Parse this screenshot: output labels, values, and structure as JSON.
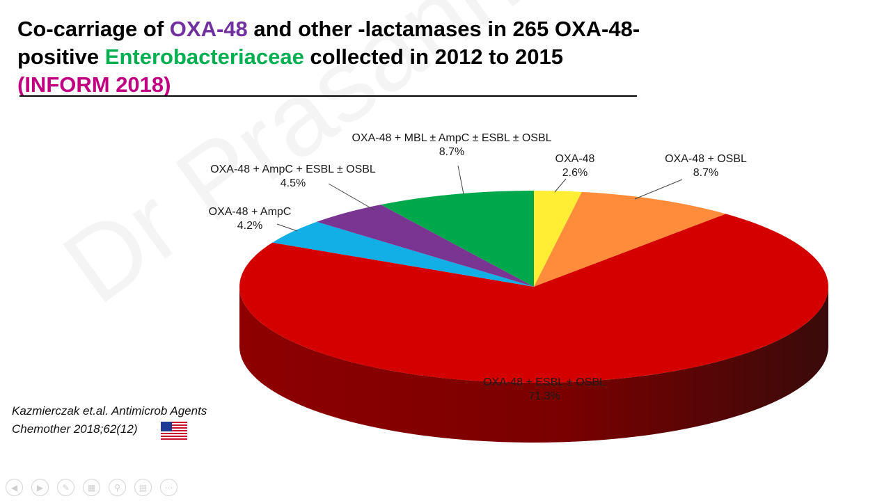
{
  "slide": {
    "title_parts": {
      "p1": "Co-carriage of ",
      "p2": "OXA-48",
      "p3": " and other -lactamases in 265 OXA-48-positive ",
      "p4": "Enterobacteriaceae",
      "p5": " collected in 2012 to 2015 ",
      "p6": "(INFORM 2018)"
    },
    "citation_line1": "Kazmierczak et.al. Antimicrob Agents",
    "citation_line2": "Chemother 2018;62(12)",
    "watermark": "Dr Prasanna Rangappa"
  },
  "chart_data": {
    "type": "pie",
    "title": "",
    "slices": [
      {
        "label": "OXA-48",
        "percent_label": "2.6%",
        "value": 2.6,
        "color": "#ffee33"
      },
      {
        "label": "OXA-48 + OSBL",
        "percent_label": "8.7%",
        "value": 8.7,
        "color": "#ff8c3a"
      },
      {
        "label": "OXA-48 + ESBL ± OSBL",
        "percent_label": "71.3%",
        "value": 71.3,
        "color": "#d40000"
      },
      {
        "label": "OXA-48 + AmpC",
        "percent_label": "4.2%",
        "value": 4.2,
        "color": "#12aee6"
      },
      {
        "label": "OXA-48 + AmpC + ESBL ± OSBL",
        "percent_label": "4.5%",
        "value": 4.5,
        "color": "#7a3592"
      },
      {
        "label": "OXA-48 + MBL ± AmpC ± ESBL ± OSBL",
        "percent_label": "8.7%",
        "value": 8.7,
        "color": "#00a84c"
      }
    ]
  }
}
